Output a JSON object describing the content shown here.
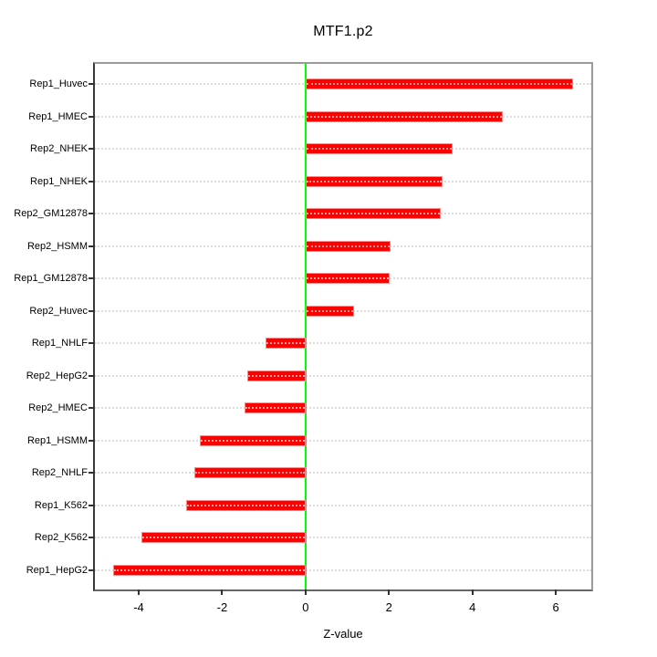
{
  "chart_data": {
    "type": "bar",
    "orientation": "horizontal",
    "title": "MTF1.p2",
    "xlabel": "Z-value",
    "categories": [
      "Rep1_Huvec",
      "Rep1_HMEC",
      "Rep2_NHEK",
      "Rep1_NHEK",
      "Rep2_GM12878",
      "Rep2_HSMM",
      "Rep1_GM12878",
      "Rep2_Huvec",
      "Rep1_NHLF",
      "Rep2_HepG2",
      "Rep2_HMEC",
      "Rep1_HSMM",
      "Rep2_NHLF",
      "Rep1_K562",
      "Rep2_K562",
      "Rep1_HepG2"
    ],
    "values": [
      6.42,
      4.73,
      3.52,
      3.29,
      3.23,
      2.04,
      2.02,
      1.16,
      -0.97,
      -1.4,
      -1.47,
      -2.53,
      -2.67,
      -2.86,
      -3.93,
      -4.62
    ],
    "x_ticks": [
      -4,
      -2,
      0,
      2,
      4,
      6
    ],
    "xlim": [
      -5.05,
      6.85
    ],
    "zero_line_x": 0,
    "grid": true,
    "legend": "none",
    "colors": {
      "bar": "#ff0000",
      "bar_edge": "#ff8a8a",
      "zero_line": "#00ff00",
      "grid": "#dcdcdc",
      "frame": "#9a9a9a",
      "text": "#000000"
    }
  }
}
